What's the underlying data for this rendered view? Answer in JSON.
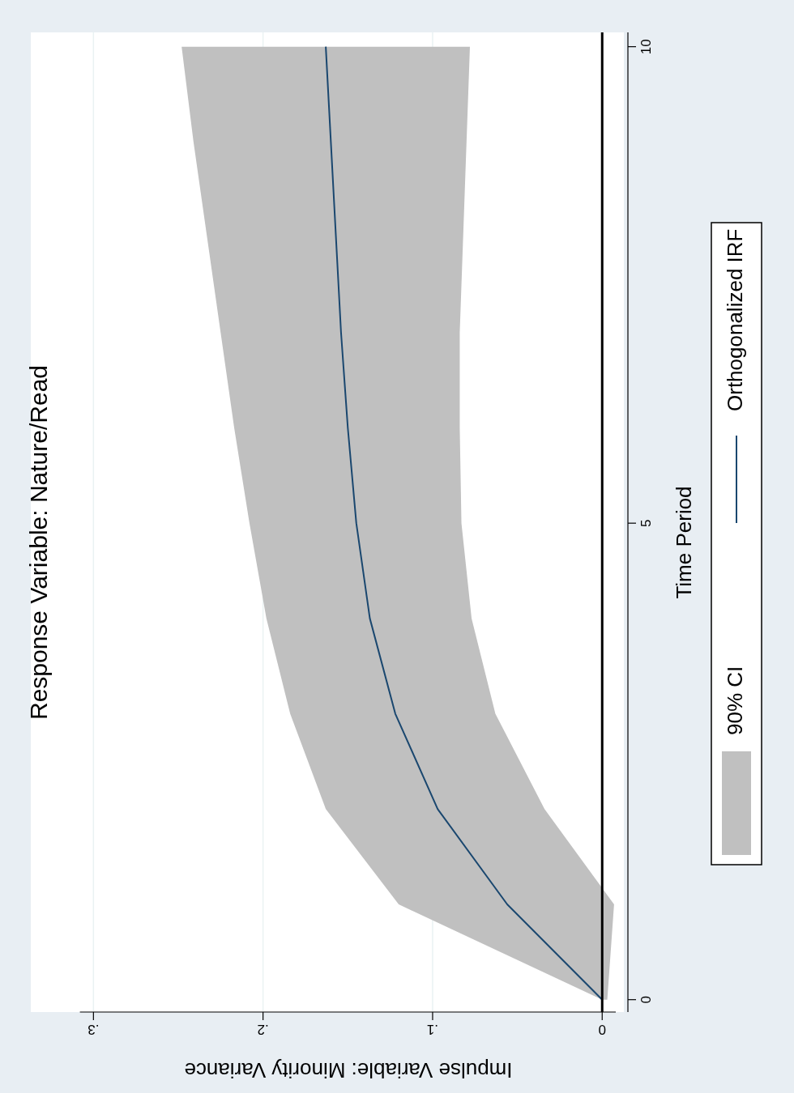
{
  "chart_data": {
    "type": "line",
    "orientation": "horizontal",
    "title": "Response Variable: Nature/Read",
    "xlabel": "Impulse Variable: Minority Variance",
    "ylabel": "Time Period",
    "annotations": [
      "90% CI"
    ],
    "x": [
      0,
      1,
      2,
      3,
      4,
      5,
      6,
      7,
      8,
      9,
      10
    ],
    "series": [
      {
        "name": "Orthogonalized IRF",
        "color": "#1a476f",
        "values": [
          0,
          0.056,
          0.097,
          0.122,
          0.137,
          0.145,
          0.15,
          0.154,
          0.157,
          0.16,
          0.163
        ],
        "lower": [
          -0.003,
          -0.007,
          0.034,
          0.063,
          0.077,
          0.083,
          0.084,
          0.084,
          0.082,
          0.08,
          0.078
        ],
        "upper": [
          0,
          0.12,
          0.163,
          0.184,
          0.198,
          0.208,
          0.217,
          0.225,
          0.233,
          0.241,
          0.248
        ]
      }
    ],
    "xlim": [
      0.308,
      -0.008
    ],
    "xticks": [
      {
        "value": 0.3,
        "label": ".3"
      },
      {
        "value": 0.2,
        "label": ".2"
      },
      {
        "value": 0.1,
        "label": ".1"
      },
      {
        "value": 0,
        "label": "0"
      }
    ],
    "ylim": [
      -0.13,
      10.15
    ],
    "yticks": [
      0,
      5,
      10
    ],
    "grid": "x",
    "legend": "right",
    "ref_lines": [
      {
        "axis": "x",
        "value": 0,
        "color": "#000000"
      }
    ]
  }
}
